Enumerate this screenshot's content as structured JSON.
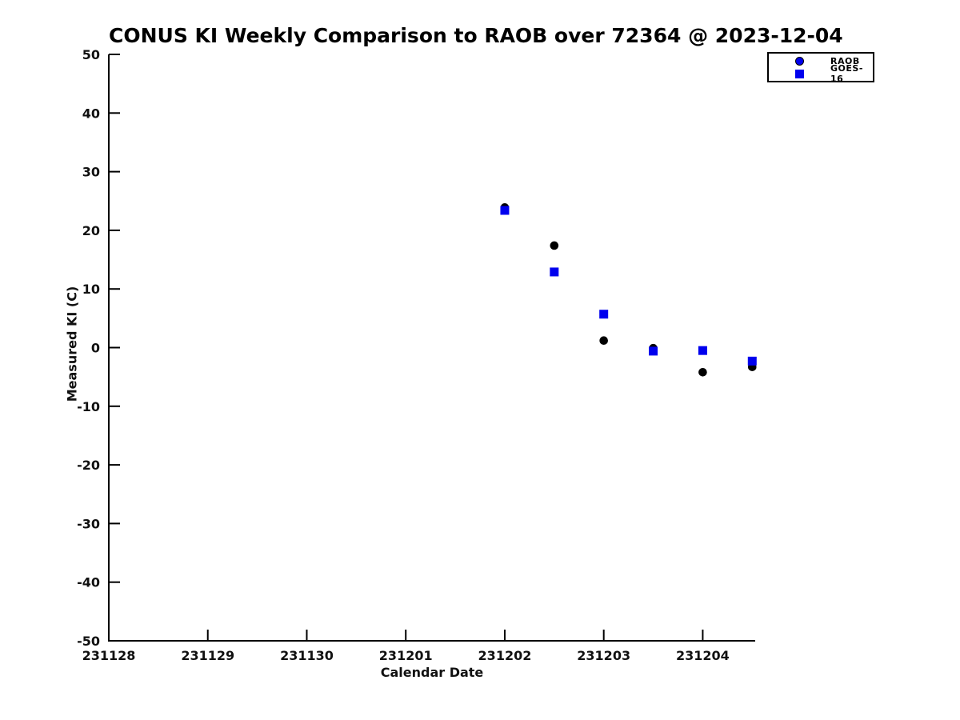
{
  "window": {
    "background": "#ffffff"
  },
  "chart_data": {
    "type": "scatter",
    "title": "CONUS KI Weekly Comparison to RAOB over 72364 @ 2023-12-04",
    "xlabel": "Calendar Date",
    "ylabel": "Measured KI (C)",
    "ylim": [
      -50,
      50
    ],
    "y_ticks": [
      50,
      40,
      30,
      20,
      10,
      0,
      -10,
      -20,
      -30,
      -40,
      -50
    ],
    "x_tick_labels": [
      "231128",
      "231129",
      "231130",
      "231201",
      "231202",
      "231203",
      "231204"
    ],
    "x_tick_day_offsets": [
      0,
      1,
      2,
      3,
      4,
      5,
      6
    ],
    "xlim_day_offsets": [
      0,
      6.53
    ],
    "grid": false,
    "legend": {
      "position": "top-right",
      "entries": [
        {
          "label": "RAOB",
          "marker": "circle",
          "fill": "#0000EE",
          "edge": "#000000"
        },
        {
          "label": "GOES-16",
          "marker": "square",
          "fill": "#0000EE"
        }
      ]
    },
    "series": [
      {
        "name": "RAOB",
        "marker": "circle",
        "fill": "#000000",
        "points": [
          {
            "date": "231202",
            "day_offset": 4.0,
            "y": 23.9
          },
          {
            "date": "231202",
            "day_offset": 4.5,
            "y": 17.4
          },
          {
            "date": "231203",
            "day_offset": 5.0,
            "y": 1.2
          },
          {
            "date": "231203",
            "day_offset": 5.5,
            "y": -0.1
          },
          {
            "date": "231204",
            "day_offset": 6.0,
            "y": -4.2
          },
          {
            "date": "231204",
            "day_offset": 6.5,
            "y": -3.3
          }
        ]
      },
      {
        "name": "GOES-16",
        "marker": "square",
        "fill": "#0000EE",
        "points": [
          {
            "date": "231202",
            "day_offset": 4.0,
            "y": 23.4
          },
          {
            "date": "231202",
            "day_offset": 4.5,
            "y": 12.9
          },
          {
            "date": "231203",
            "day_offset": 5.0,
            "y": 5.7
          },
          {
            "date": "231203",
            "day_offset": 5.5,
            "y": -0.6
          },
          {
            "date": "231204",
            "day_offset": 6.0,
            "y": -0.5
          },
          {
            "date": "231204",
            "day_offset": 6.5,
            "y": -2.3
          }
        ]
      }
    ]
  }
}
